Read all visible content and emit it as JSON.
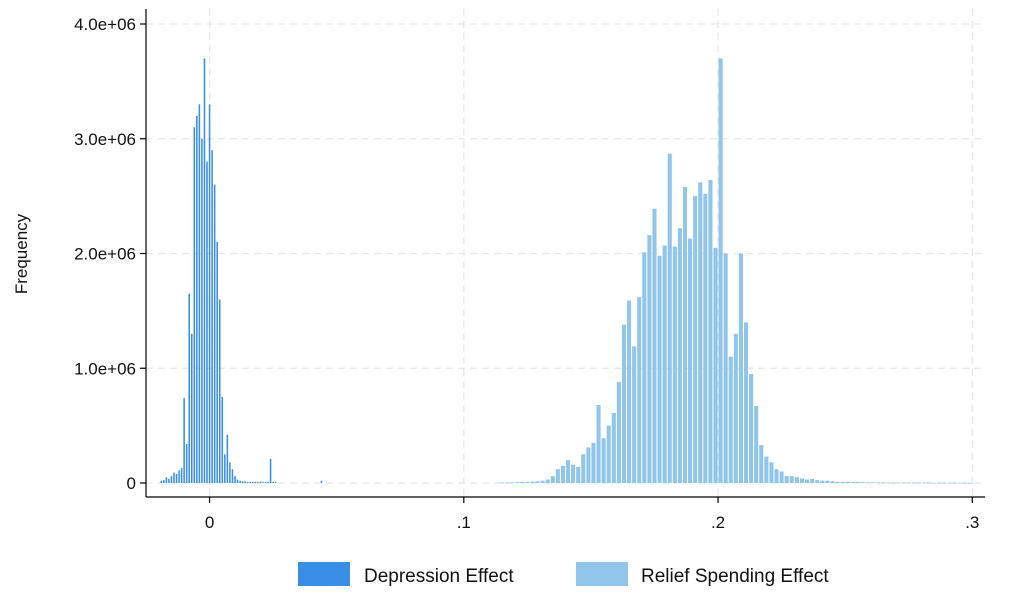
{
  "chart_data": {
    "type": "bar",
    "subtype": "overlaid-histogram",
    "title": "",
    "xlabel": "",
    "ylabel": "Frequency",
    "xlim": [
      -0.025,
      0.305
    ],
    "ylim": [
      0,
      4000000
    ],
    "grid": true,
    "x_ticks": [
      {
        "value": 0,
        "label": "0"
      },
      {
        "value": 0.1,
        "label": ".1"
      },
      {
        "value": 0.2,
        "label": ".2"
      },
      {
        "value": 0.3,
        "label": ".3"
      }
    ],
    "y_ticks": [
      {
        "value": 0,
        "label": "0"
      },
      {
        "value": 1000000,
        "label": "1.0e+06"
      },
      {
        "value": 2000000,
        "label": "2.0e+06"
      },
      {
        "value": 3000000,
        "label": "3.0e+06"
      },
      {
        "value": 4000000,
        "label": "4.0e+06"
      }
    ],
    "legend_position": "bottom",
    "series": [
      {
        "name": "Depression Effect",
        "color": "#3a8ee6",
        "bin_width": 0.001,
        "x": [
          -0.019,
          -0.018,
          -0.017,
          -0.016,
          -0.015,
          -0.014,
          -0.013,
          -0.012,
          -0.011,
          -0.01,
          -0.009,
          -0.008,
          -0.007,
          -0.006,
          -0.005,
          -0.004,
          -0.003,
          -0.002,
          -0.001,
          0.0,
          0.001,
          0.002,
          0.003,
          0.004,
          0.005,
          0.006,
          0.007,
          0.008,
          0.009,
          0.01,
          0.011,
          0.012,
          0.013,
          0.014,
          0.015,
          0.016,
          0.017,
          0.018,
          0.019,
          0.02,
          0.021,
          0.022,
          0.023,
          0.024,
          0.025,
          0.026,
          0.044
        ],
        "values": [
          20000,
          25000,
          50000,
          35000,
          60000,
          90000,
          80000,
          110000,
          130000,
          740000,
          340000,
          1650000,
          1300000,
          3100000,
          3200000,
          3300000,
          3000000,
          3700000,
          2800000,
          3300000,
          2900000,
          2600000,
          2100000,
          1600000,
          750000,
          250000,
          420000,
          180000,
          120000,
          60000,
          30000,
          20000,
          15000,
          15000,
          10000,
          10000,
          10000,
          10000,
          10000,
          10000,
          10000,
          10000,
          10000,
          210000,
          10000,
          10000,
          20000
        ]
      },
      {
        "name": "Relief Spending Effect",
        "color": "#92c5ea",
        "bin_width": 0.002,
        "x": [
          0.115,
          0.117,
          0.119,
          0.121,
          0.123,
          0.125,
          0.127,
          0.129,
          0.131,
          0.133,
          0.135,
          0.137,
          0.139,
          0.141,
          0.143,
          0.145,
          0.147,
          0.149,
          0.151,
          0.153,
          0.155,
          0.157,
          0.159,
          0.161,
          0.163,
          0.165,
          0.167,
          0.169,
          0.171,
          0.173,
          0.175,
          0.177,
          0.179,
          0.181,
          0.183,
          0.185,
          0.187,
          0.189,
          0.191,
          0.193,
          0.195,
          0.197,
          0.199,
          0.201,
          0.203,
          0.205,
          0.207,
          0.209,
          0.211,
          0.213,
          0.215,
          0.217,
          0.219,
          0.221,
          0.223,
          0.225,
          0.227,
          0.229,
          0.231,
          0.233,
          0.235,
          0.237,
          0.239,
          0.241,
          0.243,
          0.245,
          0.247,
          0.249,
          0.251,
          0.253,
          0.255,
          0.257,
          0.259,
          0.261,
          0.263,
          0.265,
          0.267,
          0.269,
          0.271,
          0.273,
          0.275,
          0.277,
          0.279,
          0.281,
          0.283,
          0.285,
          0.287,
          0.289,
          0.291,
          0.293,
          0.295,
          0.297,
          0.299
        ],
        "values": [
          5000,
          5000,
          5000,
          8000,
          10000,
          10000,
          12000,
          15000,
          20000,
          30000,
          60000,
          120000,
          150000,
          200000,
          160000,
          140000,
          250000,
          310000,
          350000,
          680000,
          390000,
          500000,
          610000,
          880000,
          1380000,
          1590000,
          1190000,
          1620000,
          2010000,
          2160000,
          2390000,
          1980000,
          2070000,
          2870000,
          2060000,
          2220000,
          2580000,
          2130000,
          2500000,
          2620000,
          2520000,
          2640000,
          2050000,
          3700000,
          2000000,
          1100000,
          1300000,
          2000000,
          1400000,
          950000,
          670000,
          330000,
          230000,
          180000,
          120000,
          100000,
          60000,
          60000,
          50000,
          40000,
          30000,
          35000,
          25000,
          20000,
          20000,
          15000,
          10000,
          10000,
          10000,
          8000,
          8000,
          8000,
          6000,
          6000,
          5000,
          5000,
          5000,
          4000,
          4000,
          4000,
          3000,
          3000,
          3000,
          3000,
          3000,
          2000,
          2000,
          2000,
          2000,
          2000,
          2000,
          2000,
          2000
        ]
      }
    ]
  }
}
